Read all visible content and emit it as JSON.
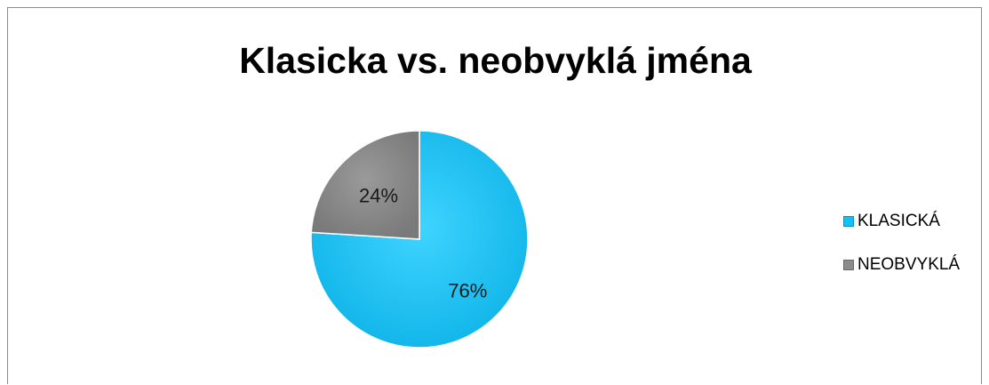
{
  "chart_data": {
    "type": "pie",
    "title": "Klasicka vs. neobvyklá jména",
    "categories": [
      "KLASICKÁ",
      "NEOBVYKLÁ"
    ],
    "values": [
      76,
      24
    ],
    "data_labels": [
      "76%",
      "24%"
    ],
    "colors": [
      "#12c1f5",
      "#8c8c8c"
    ],
    "legend_position": "right"
  }
}
